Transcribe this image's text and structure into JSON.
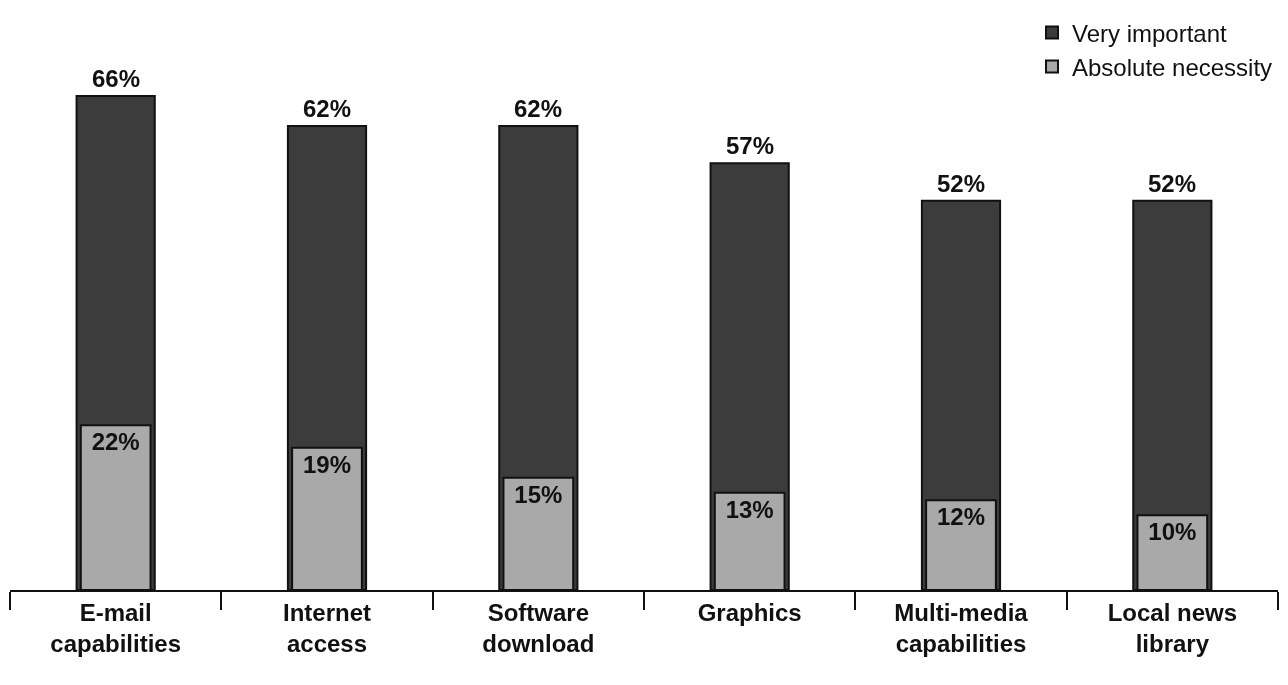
{
  "chart_data": {
    "type": "bar",
    "categories": [
      "E-mail\ncapabilities",
      "Internet\naccess",
      "Software\ndownload",
      "Graphics",
      "Multi-media\ncapabilities",
      "Local news\nlibrary"
    ],
    "series": [
      {
        "name": "Very important",
        "color": "#3c3c3c",
        "values": [
          66,
          62,
          62,
          57,
          52,
          52
        ],
        "value_labels": [
          "66%",
          "62%",
          "62%",
          "57%",
          "52%",
          "52%"
        ]
      },
      {
        "name": "Absolute necessity",
        "color": "#a9a9a9",
        "values": [
          22,
          19,
          15,
          13,
          12,
          10
        ],
        "value_labels": [
          "22%",
          "19%",
          "15%",
          "13%",
          "12%",
          "10%"
        ]
      }
    ],
    "legend": "top right",
    "grid": false,
    "tick_labels": "x"
  }
}
